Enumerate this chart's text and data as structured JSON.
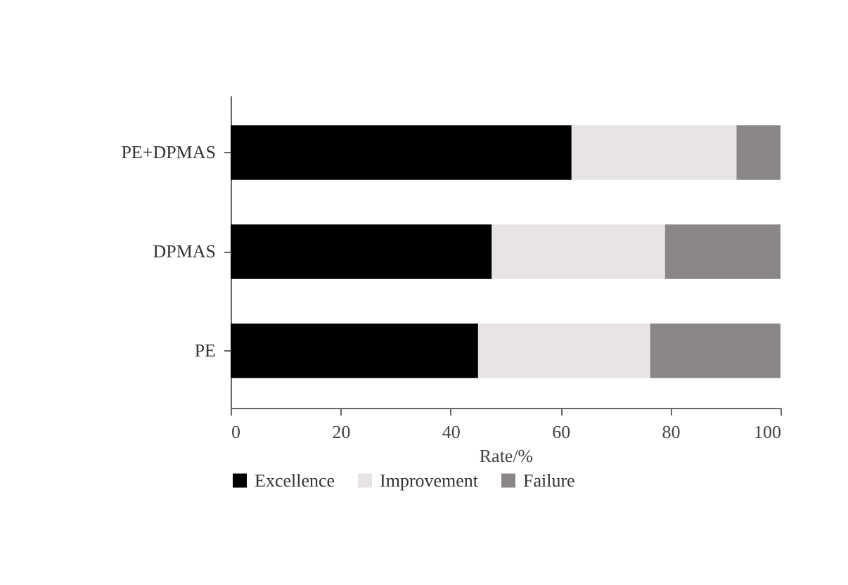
{
  "chart_data": {
    "type": "bar",
    "orientation": "horizontal",
    "stacked": true,
    "categories": [
      "PE+DPMAS",
      "DPMAS",
      "PE"
    ],
    "series": [
      {
        "name": "Excellence",
        "color": "#000000",
        "values": [
          62,
          47.5,
          45
        ]
      },
      {
        "name": "Improvement",
        "color": "#e8e4e6",
        "values": [
          30,
          31.5,
          31.3
        ]
      },
      {
        "name": "Failure",
        "color": "#8a8688",
        "values": [
          8,
          21,
          23.7
        ]
      }
    ],
    "xlabel": "Rate/%",
    "xlim": [
      0,
      100
    ],
    "xticks": [
      0,
      20,
      40,
      60,
      80,
      100
    ],
    "grid": false,
    "legend": "bottom"
  }
}
